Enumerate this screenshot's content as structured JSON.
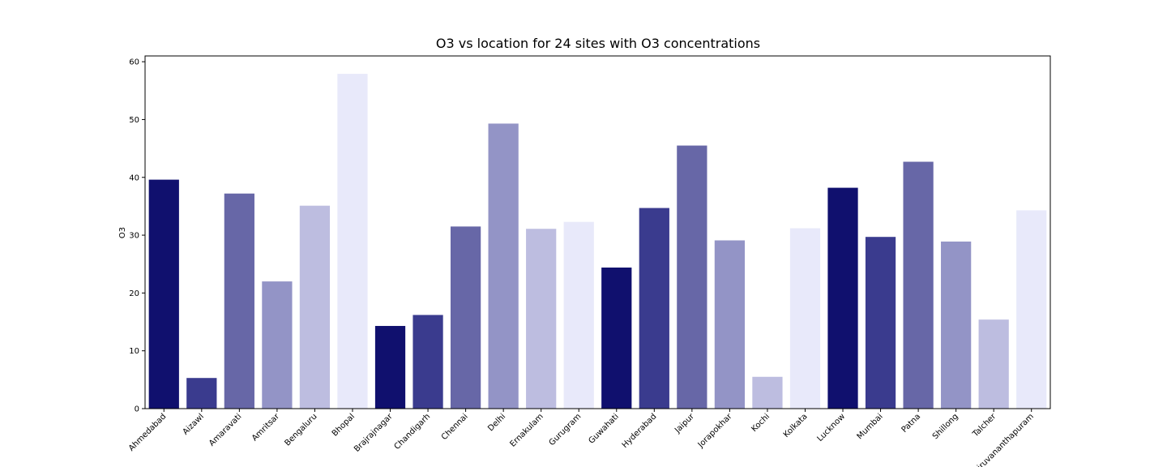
{
  "chart_data": {
    "type": "bar",
    "title": "O3 vs location for 24 sites with O3 concentrations",
    "xlabel": "",
    "ylabel": "O3",
    "ylim": [
      0,
      61
    ],
    "yticks": [
      0,
      10,
      20,
      30,
      40,
      50,
      60
    ],
    "grid": false,
    "legend": "none",
    "categories": [
      "Ahmedabad",
      "Aizawl",
      "Amaravati",
      "Amritsar",
      "Bengaluru",
      "Bhopal",
      "Brajrajnagar",
      "Chandigarh",
      "Chennai",
      "Delhi",
      "Ernakulam",
      "Gurugram",
      "Guwahati",
      "Hyderabad",
      "Jaipur",
      "Jorapokhar",
      "Kochi",
      "Kolkata",
      "Lucknow",
      "Mumbai",
      "Patna",
      "Shillong",
      "Talcher",
      "Thiruvananthapuram"
    ],
    "values": [
      39.6,
      5.3,
      37.2,
      22.0,
      35.1,
      57.9,
      14.3,
      16.2,
      31.5,
      49.3,
      31.1,
      32.3,
      24.4,
      34.7,
      45.5,
      29.1,
      5.5,
      31.2,
      38.2,
      29.7,
      42.7,
      28.9,
      15.4,
      34.3
    ],
    "palette": [
      "#10106e",
      "#3a3b8e",
      "#6767a7",
      "#9394c6",
      "#bdbde0",
      "#e8e9fa"
    ]
  }
}
